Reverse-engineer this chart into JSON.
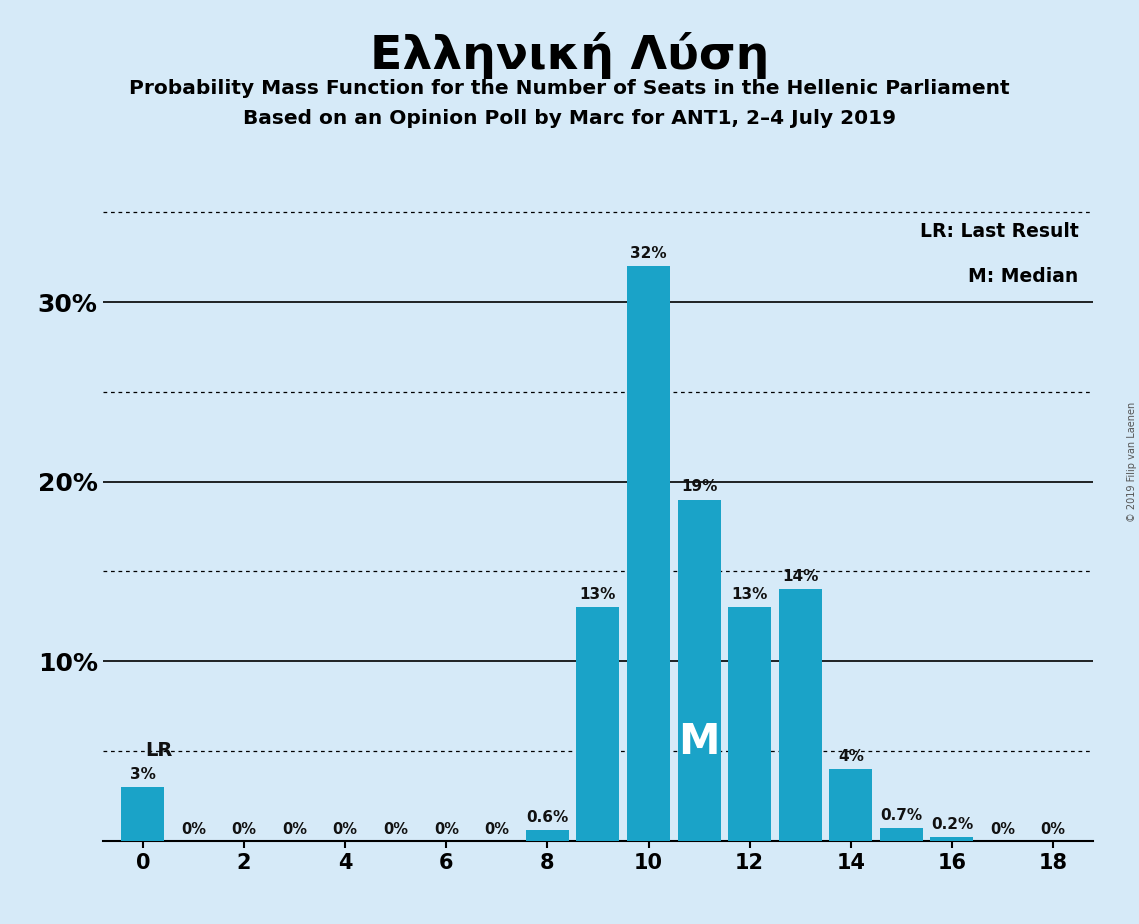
{
  "title": "Ελληνική Λύση",
  "subtitle1": "Probability Mass Function for the Number of Seats in the Hellenic Parliament",
  "subtitle2": "Based on an Opinion Poll by Marc for ANT1, 2–4 July 2019",
  "seats": [
    0,
    1,
    2,
    3,
    4,
    5,
    6,
    7,
    8,
    9,
    10,
    11,
    12,
    13,
    14,
    15,
    16,
    17,
    18
  ],
  "probs": [
    0.03,
    0.0,
    0.0,
    0.0,
    0.0,
    0.0,
    0.0,
    0.0,
    0.006,
    0.13,
    0.32,
    0.19,
    0.13,
    0.14,
    0.04,
    0.007,
    0.002,
    0.0,
    0.0
  ],
  "bar_color": "#1aa3c8",
  "bg_color": "#d6eaf8",
  "label_color_dark": "#111111",
  "label_color_white": "#ffffff",
  "lr_seat": 0,
  "median_seat": 11,
  "legend_lr": "LR: Last Result",
  "legend_m": "M: Median",
  "copyright": "© 2019 Filip van Laenen",
  "ylim": [
    0,
    0.355
  ],
  "yticks": [
    0.0,
    0.1,
    0.2,
    0.3
  ],
  "ytick_labels": [
    "",
    "10%",
    "20%",
    "30%"
  ],
  "dotted_yticks": [
    0.05,
    0.15,
    0.25,
    0.35
  ],
  "solid_yticks": [
    0.1,
    0.2,
    0.3
  ],
  "xticks": [
    0,
    2,
    4,
    6,
    8,
    10,
    12,
    14,
    16,
    18
  ]
}
